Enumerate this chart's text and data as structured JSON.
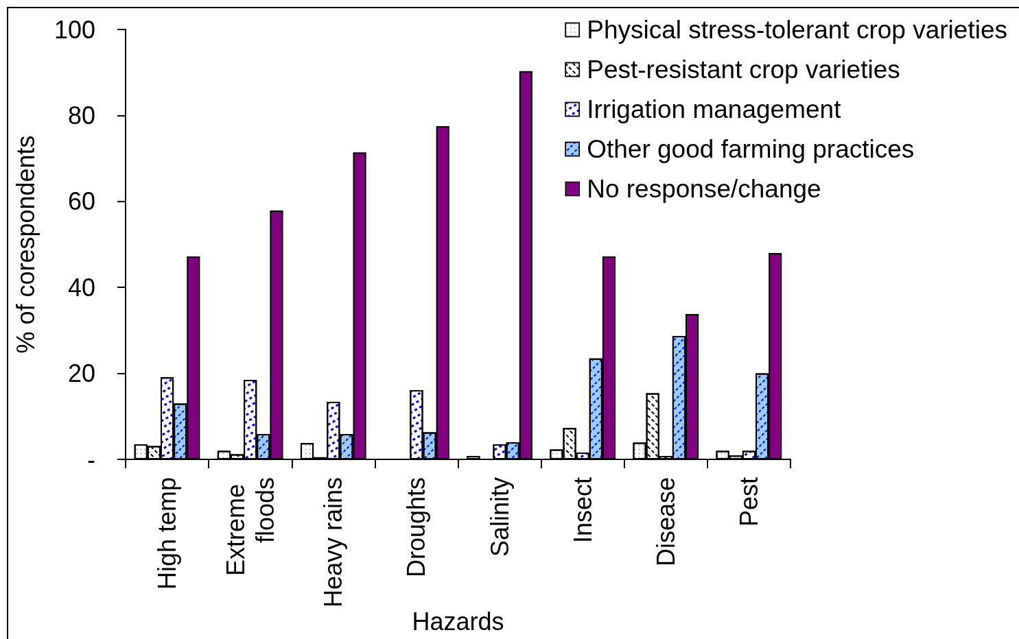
{
  "chart_data": {
    "type": "bar",
    "xlabel": "Hazards",
    "ylabel": "% of corespondents",
    "categories": [
      "High temp",
      "Extreme floods",
      "Heavy rains",
      "Droughts",
      "Salinity",
      "Insect",
      "Disease",
      "Pest"
    ],
    "series": [
      {
        "name": "Physical stress-tolerant crop varieties",
        "color": "#ffffff",
        "values": [
          3.5,
          2.0,
          3.8,
          null,
          0.8,
          2.3,
          3.9,
          2.0
        ]
      },
      {
        "name": "Pest-resistant crop varieties",
        "color": "#ffffff",
        "values": [
          3.1,
          1.2,
          0.5,
          null,
          null,
          7.3,
          15.4,
          0.9
        ]
      },
      {
        "name": "Irrigation management",
        "color": "#ffffff",
        "values": [
          19.1,
          18.5,
          13.4,
          16.1,
          3.5,
          1.6,
          0.8,
          2.0
        ]
      },
      {
        "name": "Other good farming practices",
        "color": "#99ccff",
        "values": [
          13.0,
          5.9,
          5.9,
          6.3,
          4.0,
          23.5,
          28.7,
          20.0
        ]
      },
      {
        "name": "No response/change",
        "color": "#800080",
        "values": [
          47.2,
          57.9,
          71.4,
          77.5,
          90.3,
          47.2,
          33.8,
          48.0
        ]
      }
    ],
    "ylim": [
      0,
      100
    ],
    "yticks": [
      {
        "value": 0,
        "label": "-"
      },
      20,
      40,
      60,
      80,
      100
    ],
    "grid": false,
    "legend": "top right"
  }
}
